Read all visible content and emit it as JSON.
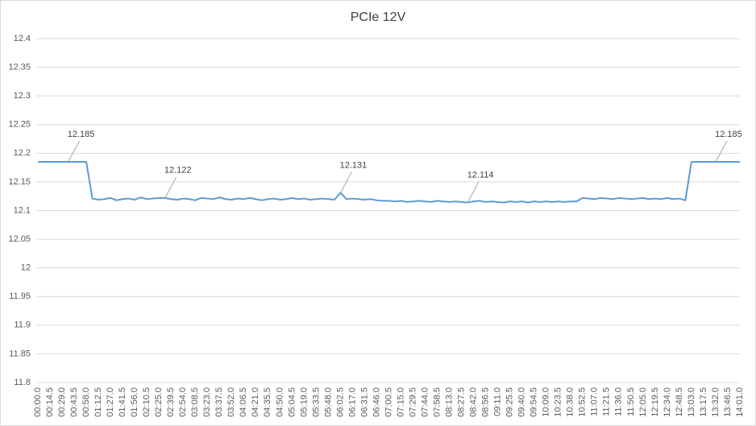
{
  "chart_data": {
    "type": "line",
    "title": "PCIe 12V",
    "color": "#5b9bd5",
    "grid": true,
    "ylim": [
      11.8,
      12.4
    ],
    "yticks": [
      11.8,
      11.85,
      11.9,
      11.95,
      12,
      12.05,
      12.1,
      12.15,
      12.2,
      12.25,
      12.3,
      12.35,
      12.4
    ],
    "categories": [
      "00:00.0",
      null,
      "00:14.5",
      null,
      "00:29.0",
      null,
      "00:43.5",
      null,
      "00:58.0",
      null,
      "01:12.5",
      null,
      "01:27.0",
      null,
      "01:41.5",
      null,
      "01:56.0",
      null,
      "02:10.5",
      null,
      "02:25.0",
      null,
      "02:39.5",
      null,
      "02:54.0",
      null,
      "03:08.5",
      null,
      "03:23.0",
      null,
      "03:37.5",
      null,
      "03:52.0",
      null,
      "04:06.5",
      null,
      "04:21.0",
      null,
      "04:35.5",
      null,
      "04:50.0",
      null,
      "05:04.5",
      null,
      "05:19.0",
      null,
      "05:33.5",
      null,
      "05:48.0",
      null,
      "06:02.5",
      null,
      "06:17.0",
      null,
      "06:31.5",
      null,
      "06:46.0",
      null,
      "07:00.5",
      null,
      "07:15.0",
      null,
      "07:29.5",
      null,
      "07:44.0",
      null,
      "07:58.5",
      null,
      "08:13.0",
      null,
      "08:27.5",
      null,
      "08:42.0",
      null,
      "08:56.5",
      null,
      "09:11.0",
      null,
      "09:25.5",
      null,
      "09:40.0",
      null,
      "09:54.5",
      null,
      "10:09.0",
      null,
      "10:23.5",
      null,
      "10:38.0",
      null,
      "10:52.5",
      null,
      "11:07.0",
      null,
      "11:21.5",
      null,
      "11:36.0",
      null,
      "11:50.5",
      null,
      "12:05.0",
      null,
      "12:19.5",
      null,
      "12:34.0",
      null,
      "12:48.5",
      null,
      "13:03.0",
      null,
      "13:17.5",
      null,
      "13:32.0",
      null,
      "13:46.5",
      null,
      "14:01.0"
    ],
    "values": [
      12.185,
      12.185,
      12.185,
      12.185,
      12.185,
      12.185,
      12.185,
      12.185,
      12.185,
      12.121,
      12.119,
      12.12,
      12.122,
      12.118,
      12.12,
      12.121,
      12.119,
      12.123,
      12.12,
      12.121,
      12.122,
      12.122,
      12.12,
      12.119,
      12.121,
      12.12,
      12.118,
      12.122,
      12.121,
      12.12,
      12.123,
      12.12,
      12.119,
      12.121,
      12.12,
      12.122,
      12.12,
      12.118,
      12.12,
      12.121,
      12.119,
      12.12,
      12.122,
      12.12,
      12.121,
      12.119,
      12.12,
      12.121,
      12.12,
      12.119,
      12.131,
      12.12,
      12.121,
      12.12,
      12.119,
      12.12,
      12.118,
      12.117,
      12.117,
      12.116,
      12.117,
      12.115,
      12.116,
      12.117,
      12.116,
      12.115,
      12.117,
      12.116,
      12.115,
      12.116,
      12.115,
      12.114,
      12.116,
      12.117,
      12.115,
      12.116,
      12.115,
      12.114,
      12.116,
      12.115,
      12.116,
      12.114,
      12.116,
      12.115,
      12.116,
      12.115,
      12.116,
      12.115,
      12.116,
      12.116,
      12.122,
      12.121,
      12.12,
      12.122,
      12.121,
      12.12,
      12.122,
      12.121,
      12.12,
      12.121,
      12.122,
      12.12,
      12.121,
      12.12,
      12.122,
      12.12,
      12.121,
      12.118,
      12.185,
      12.185,
      12.185,
      12.185,
      12.185,
      12.185,
      12.185,
      12.185,
      12.185
    ],
    "value_labels": [
      null,
      null,
      null,
      null,
      null,
      "12.185",
      null,
      null,
      null,
      null,
      null,
      null,
      null,
      null,
      null,
      null,
      null,
      null,
      null,
      null,
      null,
      "12.122",
      null,
      null,
      null,
      null,
      null,
      null,
      null,
      null,
      null,
      null,
      null,
      null,
      null,
      null,
      null,
      null,
      null,
      null,
      null,
      null,
      null,
      null,
      null,
      null,
      null,
      null,
      null,
      null,
      "12.131",
      null,
      null,
      null,
      null,
      null,
      null,
      null,
      null,
      null,
      null,
      null,
      null,
      null,
      null,
      null,
      null,
      null,
      null,
      null,
      null,
      "12.114",
      null,
      null,
      null,
      null,
      null,
      null,
      null,
      null,
      null,
      null,
      null,
      null,
      null,
      null,
      null,
      null,
      null,
      null,
      null,
      null,
      null,
      null,
      null,
      null,
      null,
      null,
      null,
      null,
      null,
      null,
      null,
      null,
      null,
      null,
      null,
      null,
      null,
      null,
      null,
      null,
      "12.185",
      null,
      null,
      null,
      null
    ]
  }
}
